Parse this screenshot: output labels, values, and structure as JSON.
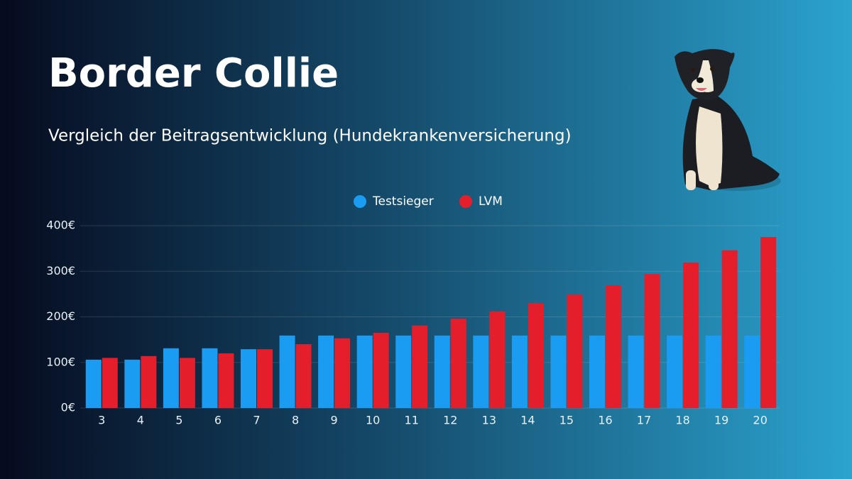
{
  "chart_data": {
    "type": "bar",
    "title": "Border Collie",
    "subtitle": "Vergleich der Beitragsentwicklung (Hundekrankenversicherung)",
    "categories": [
      "3",
      "4",
      "5",
      "6",
      "7",
      "8",
      "9",
      "10",
      "11",
      "12",
      "13",
      "14",
      "15",
      "16",
      "17",
      "18",
      "19",
      "20"
    ],
    "series": [
      {
        "name": "Testsieger",
        "color": "#1a9cf2",
        "values": [
          106,
          106,
          131,
          131,
          129,
          159,
          159,
          159,
          159,
          159,
          159,
          159,
          159,
          159,
          159,
          159,
          159,
          159
        ]
      },
      {
        "name": "LVM",
        "color": "#e41e2b",
        "values": [
          110,
          114,
          110,
          120,
          129,
          140,
          153,
          165,
          181,
          196,
          212,
          230,
          249,
          269,
          294,
          319,
          346,
          375
        ]
      }
    ],
    "ylim": [
      0,
      400
    ],
    "yticks": [
      {
        "value": 0,
        "label": "0€"
      },
      {
        "value": 100,
        "label": "100€"
      },
      {
        "value": 200,
        "label": "200€"
      },
      {
        "value": 300,
        "label": "300€"
      },
      {
        "value": 400,
        "label": "400€"
      }
    ],
    "grid": true
  }
}
